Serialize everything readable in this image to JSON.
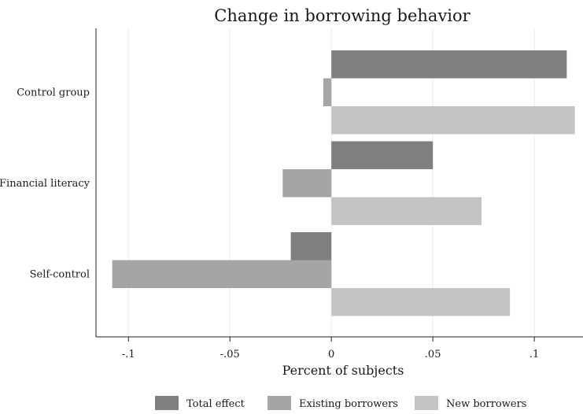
{
  "chart_data": {
    "type": "bar",
    "orientation": "horizontal",
    "title": "Change in borrowing behavior",
    "xlabel": "Percent of subjects",
    "ylabel": "",
    "categories": [
      "Control group",
      "Financial literacy",
      "Self-control"
    ],
    "series": [
      {
        "name": "Total effect",
        "color": "#7f7f7f",
        "values": [
          0.116,
          0.05,
          -0.02
        ]
      },
      {
        "name": "Existing borrowers",
        "color": "#a5a5a5",
        "values": [
          -0.004,
          -0.024,
          -0.108
        ]
      },
      {
        "name": "New borrowers",
        "color": "#c4c4c4",
        "values": [
          0.12,
          0.074,
          0.088
        ]
      }
    ],
    "xlim": [
      -0.116,
      0.124
    ],
    "xticks": [
      {
        "value": -0.1,
        "label": "-.1"
      },
      {
        "value": -0.05,
        "label": "-.05"
      },
      {
        "value": 0,
        "label": "0"
      },
      {
        "value": 0.05,
        "label": ".05"
      },
      {
        "value": 0.1,
        "label": ".1"
      }
    ],
    "grid": true,
    "legend": "bottom"
  }
}
